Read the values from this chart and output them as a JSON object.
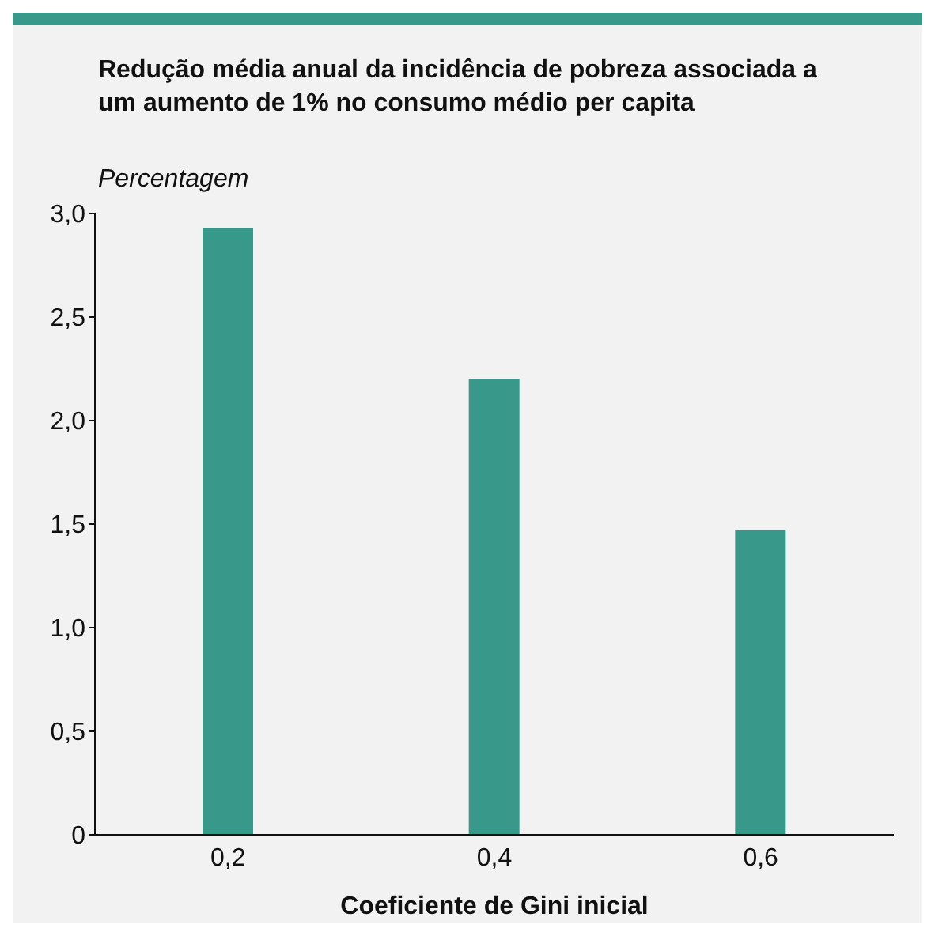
{
  "chart_data": {
    "type": "bar",
    "title": "Redução média anual da incidência de pobreza associada a um aumento de 1% no consumo médio per capita",
    "ylabel": "Percentagem",
    "xlabel": "Coeficiente de Gini inicial",
    "categories": [
      "0,2",
      "0,4",
      "0,6"
    ],
    "values": [
      2.93,
      2.2,
      1.47
    ],
    "color": "#38998b",
    "ylim": [
      0,
      3
    ],
    "yticks": [
      {
        "value": 0,
        "label": "0"
      },
      {
        "value": 0.5,
        "label": "0,5"
      },
      {
        "value": 1,
        "label": "1,0"
      },
      {
        "value": 1.5,
        "label": "1,5"
      },
      {
        "value": 2,
        "label": "2,0"
      },
      {
        "value": 2.5,
        "label": "2,5"
      },
      {
        "value": 3,
        "label": "3,0"
      }
    ],
    "grid": false,
    "legend": false
  }
}
